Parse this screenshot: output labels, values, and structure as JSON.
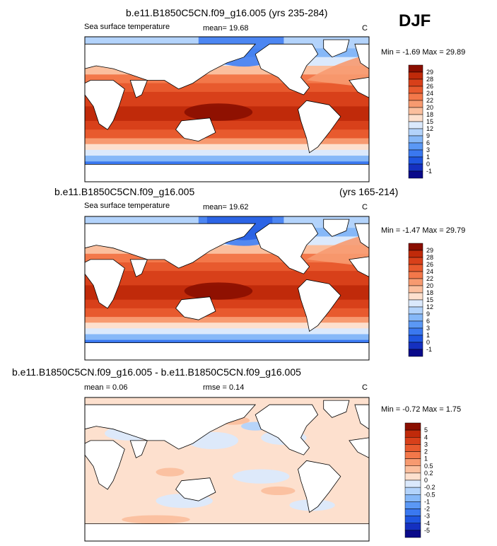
{
  "season": "DJF",
  "colors": {
    "sst_palette": [
      "#0a0a8a",
      "#1530c0",
      "#1f55e0",
      "#3a78f0",
      "#5b98f5",
      "#86b8f8",
      "#b3d3fb",
      "#dbe9fc",
      "#fde0ce",
      "#fbbf9e",
      "#f79a70",
      "#f3784a",
      "#e85a2e",
      "#d8401a",
      "#c02a0a",
      "#8a0e00"
    ],
    "diff_palette": [
      "#0a0a8a",
      "#1530c0",
      "#1f55e0",
      "#3a78f0",
      "#5b98f5",
      "#86b8f8",
      "#b3d3fb",
      "#dbe9fc",
      "#fde0ce",
      "#fbbf9e",
      "#f79a70",
      "#f3784a",
      "#e85a2e",
      "#d8401a",
      "#c02a0a",
      "#8a0e00"
    ]
  },
  "chart_data": [
    {
      "type": "heatmap",
      "title": "b.e11.B1850C5CN.f09_g16.005 (yrs 235-284)",
      "left_label": "Sea surface temperature",
      "mean_text": "mean=  19.68",
      "units": "C",
      "minmax_text": "Min =  -1.69 Max =  29.89",
      "min": -1.69,
      "max": 29.89,
      "mean": 19.68,
      "colorbar_ticks": [
        "29",
        "28",
        "26",
        "24",
        "22",
        "20",
        "18",
        "15",
        "12",
        "9",
        "6",
        "3",
        "1",
        "0",
        "-1"
      ]
    },
    {
      "type": "heatmap",
      "title": "b.e11.B1850C5CN.f09_g16.005",
      "title_right": "(yrs 165-214)",
      "left_label": "Sea surface temperature",
      "mean_text": "mean=  19.62",
      "units": "C",
      "minmax_text": "Min =  -1.47 Max =  29.79",
      "min": -1.47,
      "max": 29.79,
      "mean": 19.62,
      "colorbar_ticks": [
        "29",
        "28",
        "26",
        "24",
        "22",
        "20",
        "18",
        "15",
        "12",
        "9",
        "6",
        "3",
        "1",
        "0",
        "-1"
      ]
    },
    {
      "type": "heatmap",
      "title": "b.e11.B1850C5CN.f09_g16.005 - b.e11.B1850C5CN.f09_g16.005",
      "mean_text": "mean =   0.06",
      "rmse_text": "rmse =   0.14",
      "units": "C",
      "minmax_text": "Min =  -0.72 Max =   1.75",
      "min": -0.72,
      "max": 1.75,
      "mean": 0.06,
      "rmse": 0.14,
      "colorbar_ticks": [
        "5",
        "4",
        "3",
        "2",
        "1",
        "0.5",
        "0.2",
        "0",
        "-0.2",
        "-0.5",
        "-1",
        "-2",
        "-3",
        "-4",
        "-5"
      ]
    }
  ]
}
